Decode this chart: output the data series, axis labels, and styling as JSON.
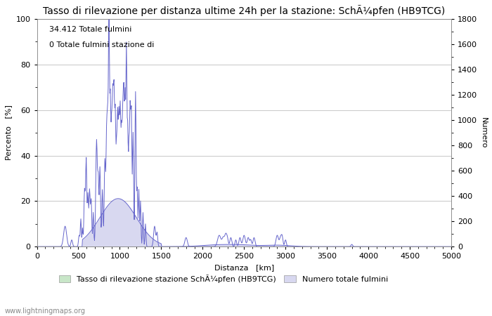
{
  "title": "Tasso di rilevazione per distanza ultime 24h per la stazione: SchÃ¼pfen (HB9TCG)",
  "xlabel": "Distanza   [km]",
  "ylabel_left": "Percento   [%]",
  "ylabel_right": "Numero",
  "annotation_line1": "34.412 Totale fulmini",
  "annotation_line2": "0 Totale fulmini stazione di",
  "legend_label1": "Tasso di rilevazione stazione SchÃ¼pfen (HB9TCG)",
  "legend_label2": "Numero totale fulmini",
  "watermark": "www.lightningmaps.org",
  "xlim": [
    0,
    5000
  ],
  "ylim_left": [
    0,
    100
  ],
  "ylim_right": [
    0,
    1800
  ],
  "xticks": [
    0,
    500,
    1000,
    1500,
    2000,
    2500,
    3000,
    3500,
    4000,
    4500,
    5000
  ],
  "yticks_left": [
    0,
    20,
    40,
    60,
    80,
    100
  ],
  "yticks_right": [
    0,
    200,
    400,
    600,
    800,
    1000,
    1200,
    1400,
    1600,
    1800
  ],
  "bg_color": "#ffffff",
  "grid_color": "#cccccc",
  "line_color": "#6666cc",
  "fill_detection_color": "#c8e6c8",
  "fill_total_color": "#d8d8f0",
  "title_fontsize": 10,
  "axis_fontsize": 8,
  "tick_fontsize": 8,
  "legend_fontsize": 8
}
